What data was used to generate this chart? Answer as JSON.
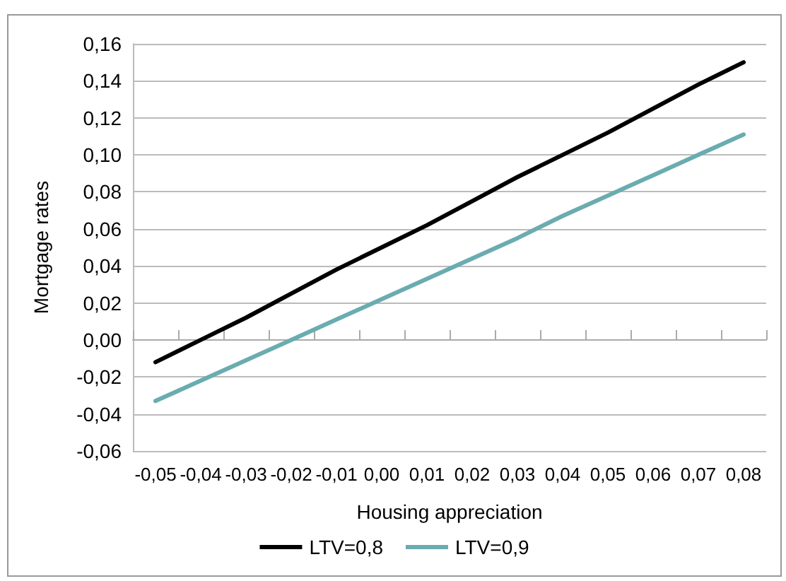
{
  "chart_data": {
    "type": "line",
    "xlabel": "Housing appreciation",
    "ylabel": "Mortgage rates",
    "categories": [
      "-0,05",
      "-0,04",
      "-0,03",
      "-0,02",
      "-0,01",
      "0,00",
      "0,01",
      "0,02",
      "0,03",
      "0,04",
      "0,05",
      "0,06",
      "0,07",
      "0,08"
    ],
    "series": [
      {
        "name": "LTV=0,8",
        "color": "#000000",
        "values": [
          -0.012,
          0,
          0.012,
          0.025,
          0.038,
          0.05,
          0.062,
          0.075,
          0.088,
          0.1,
          0.112,
          0.125,
          0.138,
          0.15
        ]
      },
      {
        "name": "LTV=0,9",
        "color": "#6aacb0",
        "values": [
          -0.033,
          -0.022,
          -0.011,
          0,
          0.011,
          0.022,
          0.033,
          0.044,
          0.055,
          0.067,
          0.078,
          0.089,
          0.1,
          0.111
        ]
      }
    ],
    "ylim": [
      -0.06,
      0.16
    ],
    "yticks": [
      {
        "value": -0.06,
        "label": "-0,06"
      },
      {
        "value": -0.04,
        "label": "-0,04"
      },
      {
        "value": -0.02,
        "label": "-0,02"
      },
      {
        "value": 0,
        "label": "0,00"
      },
      {
        "value": 0.02,
        "label": "0,02"
      },
      {
        "value": 0.04,
        "label": "0,04"
      },
      {
        "value": 0.06,
        "label": "0,06"
      },
      {
        "value": 0.08,
        "label": "0,08"
      },
      {
        "value": 0.1,
        "label": "0,10"
      },
      {
        "value": 0.12,
        "label": "0,12"
      },
      {
        "value": 0.14,
        "label": "0,14"
      },
      {
        "value": 0.16,
        "label": "0,16"
      }
    ],
    "grid": "y",
    "legend": "bottom",
    "marker": "none",
    "line_style": "solid"
  }
}
